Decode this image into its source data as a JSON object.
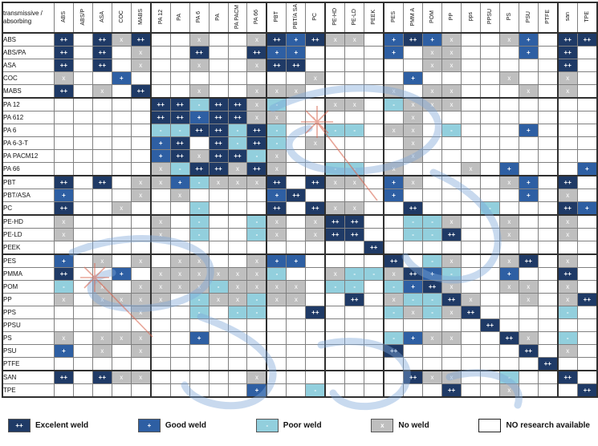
{
  "corner": {
    "line1": "transmissive /",
    "line2": "absorbing"
  },
  "colors": {
    "excellent": "#1f3a66",
    "good": "#2e5fa3",
    "poor": "#92cfdd",
    "no_weld": "#bfbfbf",
    "no_research": "#ffffff",
    "watermark_blue": "#7da7d9",
    "watermark_red": "#d96a55"
  },
  "legend": {
    "items": [
      {
        "symbol": "++",
        "type": "excellent",
        "label": "Excelent weld"
      },
      {
        "symbol": "+",
        "type": "good",
        "label": "Good weld"
      },
      {
        "symbol": "-",
        "type": "poor",
        "label": "Poor weld"
      },
      {
        "symbol": "x",
        "type": "none",
        "label": "No weld"
      },
      {
        "symbol": "",
        "type": "research",
        "label": "NO research available"
      }
    ]
  },
  "chart_data": {
    "type": "heatmap",
    "title": "",
    "xlabel": "transmissive",
    "ylabel": "absorbing",
    "value_meaning": {
      "++": "Excellent weld",
      "+": "Good weld",
      "-": "Poor weld",
      "x": "No weld",
      "": "No research available"
    },
    "x_categories": [
      "ABS",
      "ABS/P",
      "ASA",
      "COC",
      "MABS",
      "PA 12",
      "PA",
      "PA 6",
      "PA",
      "PA PACM",
      "PA 66",
      "PBT",
      "PBT/A SA",
      "PC",
      "PE-HD",
      "PE-LD",
      "PEEK",
      "PES",
      "PMM A",
      "POM",
      "PP",
      "pps",
      "PPSU",
      "PS",
      "PSU",
      "PTFE",
      "san",
      "TPE"
    ],
    "y_categories": [
      "ABS",
      "ABS/PA",
      "ASA",
      "COC",
      "MABS",
      "PA 12",
      "PA 612",
      "PA 6",
      "PA 6-3-T",
      "PA PACM12",
      "PA 66",
      "PBT",
      "PBT/ASA",
      "PC",
      "PE-HD",
      "PE-LD",
      "PEEK",
      "PES",
      "PMMA",
      "POM",
      "PP",
      "PPS",
      "PPSU",
      "PS",
      "PSU",
      "PTFE",
      "SAN",
      "TPE"
    ],
    "values": [
      [
        "++",
        "",
        "++",
        "x",
        "++",
        "",
        "",
        "x",
        "",
        "",
        "x",
        "++",
        "+",
        "++",
        "x",
        "x",
        "",
        "+",
        "++",
        "+",
        "x",
        "",
        "",
        "x",
        "+",
        "",
        "++",
        "++"
      ],
      [
        "++",
        "",
        "++",
        "",
        "x",
        "",
        "",
        "++",
        "",
        "",
        "++",
        "+",
        "+",
        "",
        "",
        "",
        "",
        "+",
        "",
        "x",
        "x",
        "",
        "",
        "",
        "+",
        "",
        "++",
        ""
      ],
      [
        "++",
        "",
        "++",
        "",
        "x",
        "",
        "",
        "x",
        "",
        "",
        "x",
        "++",
        "++",
        "",
        "",
        "",
        "",
        "",
        "",
        "x",
        "x",
        "",
        "",
        "",
        "",
        "",
        "++",
        ""
      ],
      [
        "x",
        "",
        "",
        "+",
        "",
        "",
        "",
        "",
        "",
        "",
        "",
        "",
        "",
        "x",
        "",
        "",
        "",
        "",
        "+",
        "",
        "",
        "",
        "",
        "x",
        "",
        "",
        "x",
        ""
      ],
      [
        "++",
        "",
        "x",
        "",
        "++",
        "",
        "",
        "x",
        "",
        "",
        "x",
        "x",
        "x",
        "",
        "",
        "",
        "",
        "x",
        "",
        "x",
        "x",
        "",
        "",
        "",
        "x",
        "",
        "x",
        ""
      ],
      [
        "",
        "",
        "",
        "",
        "",
        "++",
        "++",
        "-",
        "++",
        "++",
        "x",
        "-",
        "",
        "",
        "x",
        "x",
        "",
        "-",
        "x",
        "x",
        "x",
        "",
        "",
        "",
        "",
        "",
        "",
        ""
      ],
      [
        "",
        "",
        "",
        "",
        "",
        "++",
        "++",
        "+",
        "++",
        "++",
        "x",
        "x",
        "",
        "",
        "",
        "",
        "",
        "",
        "x",
        "",
        "",
        "",
        "",
        "",
        "",
        "",
        "",
        ""
      ],
      [
        "",
        "",
        "",
        "",
        "",
        "-",
        "-",
        "++",
        "++",
        "-",
        "++",
        "-",
        "",
        "",
        "-",
        "-",
        "",
        "x",
        "x",
        "",
        "-",
        "",
        "",
        "",
        "+",
        "",
        "",
        ""
      ],
      [
        "",
        "",
        "",
        "",
        "",
        "+",
        "++",
        "",
        "++",
        "-",
        "++",
        "-",
        "",
        "x",
        "",
        "",
        "",
        "",
        "x",
        "",
        "",
        "",
        "",
        "",
        "",
        "",
        "",
        ""
      ],
      [
        "",
        "",
        "",
        "",
        "",
        "+",
        "++",
        "x",
        "++",
        "++",
        "-",
        "x",
        "",
        "",
        "",
        "",
        "",
        "",
        "x",
        "",
        "",
        "",
        "",
        "",
        "",
        "",
        "",
        ""
      ],
      [
        "",
        "",
        "",
        "",
        "",
        "x",
        "-",
        "++",
        "++",
        "x",
        "++",
        "x",
        "",
        "",
        "-",
        "-",
        "",
        "x",
        "",
        "",
        "",
        "x",
        "",
        "+",
        "",
        "",
        "",
        "+"
      ],
      [
        "++",
        "",
        "++",
        "",
        "x",
        "x",
        "+",
        "-",
        "x",
        "x",
        "x",
        "++",
        "",
        "++",
        "x",
        "x",
        "",
        "+",
        "x",
        "",
        "",
        "",
        "",
        "x",
        "+",
        "",
        "++",
        ""
      ],
      [
        "+",
        "",
        "",
        "",
        "x",
        "",
        "x",
        "",
        "",
        "",
        "",
        "+",
        "++",
        "",
        "",
        "",
        "",
        "+",
        "",
        "",
        "",
        "",
        "",
        "",
        "+",
        "",
        "x",
        ""
      ],
      [
        "++",
        "",
        "",
        "x",
        "",
        "",
        "",
        "-",
        "",
        "",
        "",
        "++",
        "",
        "++",
        "x",
        "x",
        "",
        "",
        "++",
        "",
        "",
        "",
        "-",
        "",
        "",
        "",
        "++",
        "+"
      ],
      [
        "x",
        "",
        "",
        "",
        "",
        "x",
        "",
        "-",
        "",
        "",
        "-",
        "x",
        "",
        "x",
        "++",
        "++",
        "",
        "",
        "-",
        "-",
        "x",
        "",
        "",
        "x",
        "",
        "",
        "x",
        ""
      ],
      [
        "x",
        "",
        "",
        "",
        "",
        "x",
        "",
        "-",
        "",
        "",
        "-",
        "x",
        "",
        "x",
        "++",
        "++",
        "",
        "",
        "-",
        "-",
        "++",
        "",
        "",
        "x",
        "",
        "",
        "x",
        ""
      ],
      [
        "",
        "",
        "",
        "",
        "",
        "",
        "",
        "",
        "",
        "",
        "",
        "",
        "",
        "",
        "",
        "",
        "++",
        "",
        "",
        "",
        "",
        "",
        "",
        "",
        "",
        "",
        "",
        ""
      ],
      [
        "+",
        "",
        "x",
        "",
        "x",
        "",
        "x",
        "x",
        "",
        "",
        "x",
        "+",
        "+",
        "",
        "",
        "",
        "",
        "++",
        "",
        "-",
        "x",
        "",
        "",
        "x",
        "++",
        "",
        "x",
        ""
      ],
      [
        "++",
        "",
        "",
        "+",
        "",
        "x",
        "x",
        "x",
        "x",
        "x",
        "x",
        "-",
        "",
        "",
        "x",
        "-",
        "-",
        "x",
        "++",
        "+",
        "-",
        "",
        "",
        "+",
        "",
        "",
        "++",
        ""
      ],
      [
        "-",
        "",
        "x",
        "",
        "x",
        "x",
        "x",
        "x",
        "-",
        "x",
        "x",
        "x",
        "x",
        "",
        "-",
        "-",
        "",
        "-",
        "+",
        "++",
        "x",
        "",
        "",
        "x",
        "x",
        "",
        "x",
        ""
      ],
      [
        "x",
        "",
        "x",
        "x",
        "x",
        "x",
        "",
        "-",
        "x",
        "x",
        "-",
        "x",
        "x",
        "",
        "",
        "++",
        "",
        "x",
        "-",
        "-",
        "++",
        "x",
        "",
        "",
        "x",
        "",
        "x",
        "++"
      ],
      [
        "",
        "",
        "",
        "",
        "x",
        "",
        "",
        "-",
        "",
        "-",
        "-",
        "",
        "",
        "++",
        "",
        "",
        "",
        "-",
        "x",
        "-",
        "x",
        "++",
        "",
        "",
        "",
        "",
        "-",
        ""
      ],
      [
        "",
        "",
        "",
        "",
        "",
        "",
        "",
        "",
        "",
        "",
        "",
        "",
        "",
        "",
        "",
        "",
        "",
        "",
        "",
        "",
        "",
        "",
        "++",
        "",
        "",
        "",
        "",
        ""
      ],
      [
        "x",
        "",
        "x",
        "x",
        "x",
        "",
        "",
        "+",
        "",
        "",
        "",
        "",
        "",
        "",
        "",
        "",
        "",
        "-",
        "+",
        "x",
        "x",
        "",
        "",
        "++",
        "x",
        "",
        "-",
        ""
      ],
      [
        "+",
        "",
        "x",
        "",
        "x",
        "",
        "",
        "",
        "",
        "",
        "",
        "",
        "",
        "",
        "",
        "",
        "",
        "++",
        "",
        "",
        "",
        "",
        "",
        "",
        "++",
        "",
        "x",
        ""
      ],
      [
        "",
        "",
        "",
        "",
        "",
        "",
        "",
        "",
        "",
        "",
        "",
        "",
        "",
        "",
        "",
        "",
        "",
        "",
        "",
        "",
        "",
        "",
        "",
        "",
        "",
        "++",
        "",
        ""
      ],
      [
        "++",
        "",
        "++",
        "x",
        "x",
        "",
        "",
        "",
        "",
        "",
        "x",
        "",
        "",
        "",
        "",
        "",
        "",
        "",
        "++",
        "x",
        "x",
        "",
        "",
        "-",
        "",
        "",
        "++",
        ""
      ],
      [
        "",
        "",
        "",
        "",
        "",
        "",
        "",
        "",
        "",
        "",
        "+",
        "",
        "",
        "-",
        "",
        "",
        "",
        "",
        "",
        "",
        "++",
        "",
        "",
        "x",
        "",
        "",
        "",
        "++"
      ]
    ]
  }
}
